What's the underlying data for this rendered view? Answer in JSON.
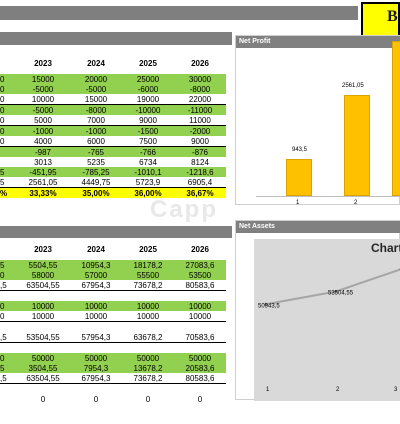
{
  "title": "Br",
  "upper_years": [
    "2023",
    "2024",
    "2025",
    "2026"
  ],
  "upper_rows": [
    {
      "style": "green",
      "c0": "0",
      "v": [
        "15000",
        "20000",
        "25000",
        "30000"
      ]
    },
    {
      "style": "green",
      "c0": "0",
      "v": [
        "-5000",
        "-5000",
        "-6000",
        "-8000"
      ]
    },
    {
      "style": "white bline",
      "c0": "0",
      "v": [
        "10000",
        "15000",
        "19000",
        "22000"
      ]
    },
    {
      "style": "green",
      "c0": "0",
      "v": [
        "-5000",
        "-8000",
        "-10000",
        "-11000"
      ]
    },
    {
      "style": "white bline",
      "c0": "0",
      "v": [
        "5000",
        "7000",
        "9000",
        "11000"
      ]
    },
    {
      "style": "green",
      "c0": "0",
      "v": [
        "-1000",
        "-1000",
        "-1500",
        "-2000"
      ]
    },
    {
      "style": "white bline",
      "c0": "0",
      "v": [
        "4000",
        "6000",
        "7500",
        "9000"
      ]
    },
    {
      "style": "green",
      "c0": "",
      "v": [
        "-987",
        "-765",
        "-766",
        "-876"
      ]
    },
    {
      "style": "white",
      "c0": "",
      "v": [
        "3013",
        "5235",
        "6734",
        "8124"
      ]
    },
    {
      "style": "green",
      "c0": "5",
      "v": [
        "-451,95",
        "-785,25",
        "-1010,1",
        "-1218,6"
      ]
    },
    {
      "style": "white bline",
      "c0": "5",
      "v": [
        "2561,05",
        "4449,75",
        "5723,9",
        "6905,4"
      ]
    },
    {
      "style": "yellow bold",
      "c0": "%",
      "v": [
        "33,33%",
        "35,00%",
        "36,00%",
        "36,67%"
      ]
    }
  ],
  "lower_years": [
    "2023",
    "2024",
    "2025",
    "2026"
  ],
  "lower_rows": [
    {
      "style": "green",
      "c0": "5",
      "v": [
        "5504,55",
        "10954,3",
        "18178,2",
        "27083,6"
      ]
    },
    {
      "style": "green",
      "c0": "0",
      "v": [
        "58000",
        "57000",
        "55500",
        "53500"
      ]
    },
    {
      "style": "white bline",
      "c0": ",5",
      "v": [
        "63504,55",
        "67954,3",
        "73678,2",
        "80583,6"
      ]
    },
    {
      "style": "white",
      "c0": "",
      "v": [
        "",
        "",
        "",
        ""
      ]
    },
    {
      "style": "green",
      "c0": "0",
      "v": [
        "10000",
        "10000",
        "10000",
        "10000"
      ]
    },
    {
      "style": "white bline",
      "c0": "0",
      "v": [
        "10000",
        "10000",
        "10000",
        "10000"
      ]
    },
    {
      "style": "white",
      "c0": "",
      "v": [
        "",
        "",
        "",
        ""
      ]
    },
    {
      "style": "white bline",
      "c0": ",5",
      "v": [
        "53504,55",
        "57954,3",
        "63678,2",
        "70583,6"
      ]
    },
    {
      "style": "white",
      "c0": "",
      "v": [
        "",
        "",
        "",
        ""
      ]
    },
    {
      "style": "green",
      "c0": "0",
      "v": [
        "50000",
        "50000",
        "50000",
        "50000"
      ]
    },
    {
      "style": "green",
      "c0": "5",
      "v": [
        "3504,55",
        "7954,3",
        "13678,2",
        "20583,6"
      ]
    },
    {
      "style": "white bline",
      "c0": ",5",
      "v": [
        "63504,55",
        "67954,3",
        "73678,2",
        "80583,6"
      ]
    },
    {
      "style": "white",
      "c0": "",
      "v": [
        "",
        "",
        "",
        ""
      ]
    },
    {
      "style": "white",
      "c0": "",
      "v": [
        "0",
        "0",
        "0",
        "0"
      ]
    }
  ],
  "net_profit": {
    "header": "Net Profit",
    "bars": [
      {
        "x": "1",
        "value": 943.5,
        "label": "943,5"
      },
      {
        "x": "2",
        "value": 2561.05,
        "label": "2561,05"
      },
      {
        "x": "",
        "value": 4449.75,
        "label": ""
      }
    ]
  },
  "net_assets": {
    "header": "Net Assets",
    "chart_title": "Chart",
    "points": [
      {
        "x": "1",
        "value": 50943.5,
        "label": "50943,5"
      },
      {
        "x": "2",
        "value": 53504.55,
        "label": "53504,55"
      },
      {
        "x": "3",
        "value": 57954.3,
        "label": ""
      }
    ],
    "xticks": [
      "1",
      "2",
      "3"
    ]
  },
  "watermark": "Capp",
  "colors": {
    "header_gray": "#7f7f7f",
    "green": "#92d050",
    "yellow": "#ffff00",
    "bar": "#ffc000"
  }
}
